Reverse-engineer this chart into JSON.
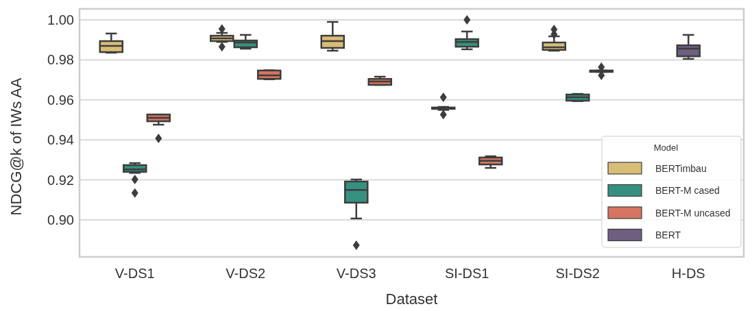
{
  "chart_data": {
    "type": "box",
    "xlabel": "Dataset",
    "ylabel": "NDCG@k of IWs AA",
    "legend_title": "Model",
    "legend": "bottom right",
    "grid": "y",
    "categories": [
      "V-DS1",
      "V-DS2",
      "V-DS3",
      "SI-DS1",
      "SI-DS2",
      "H-DS"
    ],
    "ylim": [
      0.8815,
      1.0055
    ],
    "yticks": [
      {
        "value": 0.9,
        "label": "0.90"
      },
      {
        "value": 0.92,
        "label": "0.92"
      },
      {
        "value": 0.94,
        "label": "0.94"
      },
      {
        "value": 0.96,
        "label": "0.96"
      },
      {
        "value": 0.98,
        "label": "0.98"
      },
      {
        "value": 1.0,
        "label": "1.00"
      }
    ],
    "series": [
      {
        "name": "BERTimbau",
        "color": "#d8bd77",
        "boxes": [
          {
            "low": 0.9836,
            "q1": 0.9839,
            "median": 0.987,
            "q3": 0.9894,
            "high": 0.9932
          },
          {
            "low": 0.989,
            "q1": 0.9894,
            "median": 0.9908,
            "q3": 0.9921,
            "high": 0.9935,
            "outliers": [
              0.9955,
              0.9866
            ]
          },
          {
            "low": 0.9846,
            "q1": 0.986,
            "median": 0.9894,
            "q3": 0.9921,
            "high": 0.999
          },
          {
            "low": 0.955,
            "q1": 0.9555,
            "median": 0.9558,
            "q3": 0.9562,
            "high": 0.9565,
            "outliers": [
              0.9613,
              0.9527
            ]
          },
          {
            "low": 0.9846,
            "q1": 0.985,
            "median": 0.9863,
            "q3": 0.9887,
            "high": 0.9918,
            "outliers": [
              0.9952,
              0.9928
            ]
          },
          null
        ]
      },
      {
        "name": "BERT-M cased",
        "color": "#36907f",
        "boxes": [
          {
            "low": 0.9235,
            "q1": 0.924,
            "median": 0.9253,
            "q3": 0.9274,
            "high": 0.9284,
            "outliers": [
              0.9202,
              0.9134
            ]
          },
          {
            "low": 0.9856,
            "q1": 0.9863,
            "median": 0.9887,
            "q3": 0.9897,
            "high": 0.9925
          },
          {
            "low": 0.9007,
            "q1": 0.9086,
            "median": 0.915,
            "q3": 0.9192,
            "high": 0.9202,
            "outliers": [
              0.8873
            ]
          },
          {
            "low": 0.9853,
            "q1": 0.9866,
            "median": 0.989,
            "q3": 0.9904,
            "high": 0.9942,
            "outliers": [
              1.0
            ]
          },
          {
            "low": 0.9594,
            "q1": 0.9596,
            "median": 0.9613,
            "q3": 0.9627,
            "high": 0.963
          },
          null
        ]
      },
      {
        "name": "BERT-M uncased",
        "color": "#d57561",
        "boxes": [
          {
            "low": 0.9476,
            "q1": 0.9493,
            "median": 0.951,
            "q3": 0.9527,
            "high": 0.9527,
            "outliers": [
              0.9408
            ]
          },
          {
            "low": 0.9703,
            "q1": 0.9705,
            "median": 0.9723,
            "q3": 0.9747,
            "high": 0.9748
          },
          {
            "low": 0.9675,
            "q1": 0.9675,
            "median": 0.9692,
            "q3": 0.9705,
            "high": 0.9716
          },
          {
            "low": 0.926,
            "q1": 0.9277,
            "median": 0.9295,
            "q3": 0.9312,
            "high": 0.9318
          },
          {
            "low": 0.974,
            "q1": 0.974,
            "median": 0.9743,
            "q3": 0.9747,
            "high": 0.9747,
            "outliers": [
              0.9764,
              0.9723
            ]
          },
          null
        ]
      },
      {
        "name": "BERT",
        "color": "#6e5e80",
        "boxes": [
          null,
          null,
          null,
          null,
          null,
          {
            "low": 0.9805,
            "q1": 0.9818,
            "median": 0.9856,
            "q3": 0.9873,
            "high": 0.9925
          }
        ]
      }
    ]
  }
}
